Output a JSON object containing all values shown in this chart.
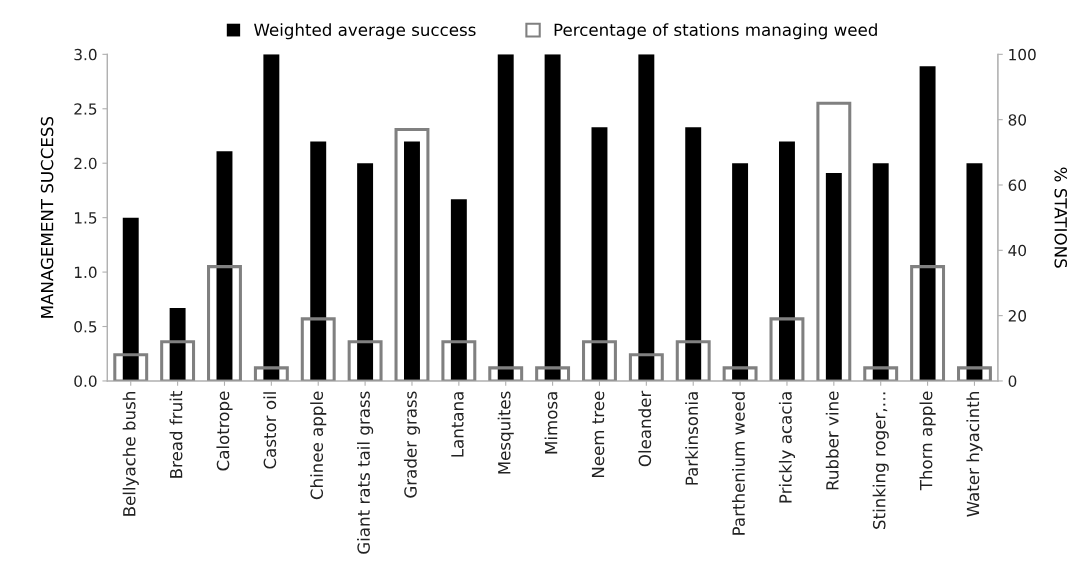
{
  "chart_data": {
    "type": "bar",
    "ylabel": "MANAGEMENT SUCCESS",
    "y2label": "% STATIONS",
    "categories": [
      "Bellyache bush",
      "Bread fruit",
      "Calotrope",
      "Castor oil",
      "Chinee apple",
      "Giant rats tail grass",
      "Grader grass",
      "Lantana",
      "Mesquites",
      "Mimosa",
      "Neem tree",
      "Oleander",
      "Parkinsonia",
      "Parthenium weed",
      "Prickly acacia",
      "Rubber vine",
      "Stinking roger,…",
      "Thorn apple",
      "Water hyacinth"
    ],
    "series": [
      {
        "name": "Weighted average success",
        "color": "#000000",
        "axis": "y",
        "values": [
          1.5,
          0.67,
          2.11,
          3.0,
          2.2,
          2.0,
          2.2,
          1.67,
          3.0,
          3.0,
          2.33,
          3.0,
          2.33,
          2.0,
          2.2,
          1.91,
          2.0,
          2.89,
          2.0
        ]
      },
      {
        "name": "Percentage of stations managing weed",
        "color": "#808080",
        "axis": "y2",
        "values": [
          8,
          12,
          35,
          4,
          19,
          12,
          77,
          12,
          4,
          4,
          12,
          8,
          12,
          4,
          19,
          85,
          4,
          35,
          4
        ]
      }
    ],
    "ylim": [
      0,
      3
    ],
    "yticks": [
      {
        "value": 0,
        "label": "0.0"
      },
      {
        "value": 0.5,
        "label": "0.5"
      },
      {
        "value": 1,
        "label": "1.0"
      },
      {
        "value": 1.5,
        "label": "1.5"
      },
      {
        "value": 2,
        "label": "2.0"
      },
      {
        "value": 2.5,
        "label": "2.5"
      },
      {
        "value": 3,
        "label": "3.0"
      }
    ],
    "y2lim": [
      0,
      100
    ],
    "y2ticks": [
      0,
      20,
      40,
      60,
      80,
      100
    ],
    "grid": false,
    "legend": "top"
  }
}
